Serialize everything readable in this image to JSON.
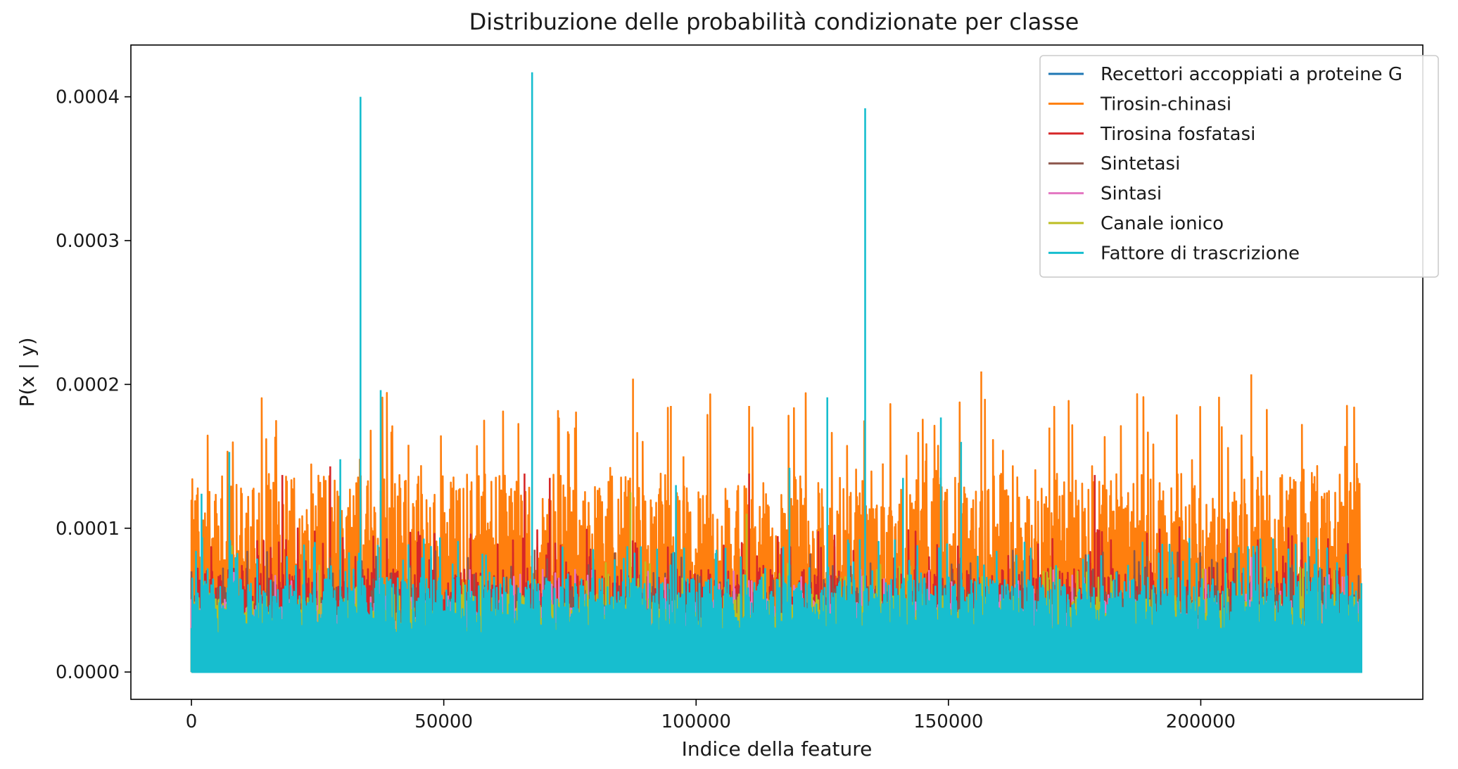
{
  "chart_data": {
    "type": "line",
    "title": "Distribuzione delle probabilità condizionate per classe",
    "xlabel": "Indice della feature",
    "ylabel": "P(x | y)",
    "xlim": [
      -12000,
      244000
    ],
    "ylim": [
      -1.9e-05,
      0.000436
    ],
    "x_ticks": [
      0,
      50000,
      100000,
      150000,
      200000
    ],
    "x_tick_labels": [
      "0",
      "50000",
      "100000",
      "150000",
      "200000"
    ],
    "y_ticks": [
      0.0,
      0.0001,
      0.0002,
      0.0003,
      0.0004
    ],
    "y_tick_labels": [
      "0.0000",
      "0.0001",
      "0.0002",
      "0.0003",
      "0.0004"
    ],
    "grid": false,
    "legend_position": "top-right",
    "n_features": 232000,
    "series": [
      {
        "name": "Recettori accoppiati a proteine G",
        "color": "#1f77b4",
        "typical_peak": 4.5e-05,
        "peaks": [
          [
            222000,
            0.000102
          ]
        ]
      },
      {
        "name": "Tirosin-chinasi",
        "color": "#ff7f0e",
        "typical_peak": 0.000115,
        "peaks": [
          [
            5000,
            7e-05
          ],
          [
            10000,
            0.00012
          ],
          [
            43000,
            0.000158
          ],
          [
            76000,
            0.00017
          ],
          [
            87500,
            0.000204
          ],
          [
            95000,
            0.000185
          ],
          [
            97500,
            0.00015
          ],
          [
            110500,
            0.000185
          ],
          [
            137000,
            0.000145
          ],
          [
            145500,
            0.000147
          ],
          [
            156500,
            0.000209
          ],
          [
            170000,
            0.00017
          ],
          [
            210000,
            0.000207
          ],
          [
            212000,
            0.00014
          ],
          [
            225000,
            0.000125
          ]
        ]
      },
      {
        "name": "Tirosina fosfatasi",
        "color": "#d62728",
        "typical_peak": 6e-05,
        "peaks": [
          [
            18000,
            0.000137
          ],
          [
            27500,
            0.000143
          ],
          [
            66000,
            0.000138
          ],
          [
            71000,
            0.000135
          ],
          [
            110500,
            0.000138
          ],
          [
            179000,
            0.000137
          ]
        ]
      },
      {
        "name": "Sintetasi",
        "color": "#8c564b",
        "typical_peak": 5e-05,
        "peaks": [
          [
            0,
            7e-05
          ],
          [
            68000,
            8.5e-05
          ]
        ]
      },
      {
        "name": "Sintasi",
        "color": "#e377c2",
        "typical_peak": 4.2e-05,
        "peaks": [
          [
            210000,
            8e-05
          ]
        ]
      },
      {
        "name": "Canale ionico",
        "color": "#bcbd22",
        "typical_peak": 4.5e-05,
        "peaks": [
          [
            8000,
            8.8e-05
          ],
          [
            87000,
            0.000125
          ],
          [
            110000,
            0.00011
          ]
        ]
      },
      {
        "name": "Fattore di trascrizione",
        "color": "#17becf",
        "typical_peak": 5.5e-05,
        "peaks": [
          [
            2000,
            0.000124
          ],
          [
            7500,
            0.000153
          ],
          [
            29500,
            0.000148
          ],
          [
            33500,
            0.0004
          ],
          [
            37500,
            0.000196
          ],
          [
            67500,
            0.000417
          ],
          [
            96000,
            0.00013
          ],
          [
            118500,
            0.000142
          ],
          [
            126000,
            0.000191
          ],
          [
            133500,
            0.000392
          ],
          [
            141000,
            0.000135
          ],
          [
            148500,
            0.000177
          ],
          [
            152500,
            0.00016
          ]
        ]
      }
    ]
  }
}
